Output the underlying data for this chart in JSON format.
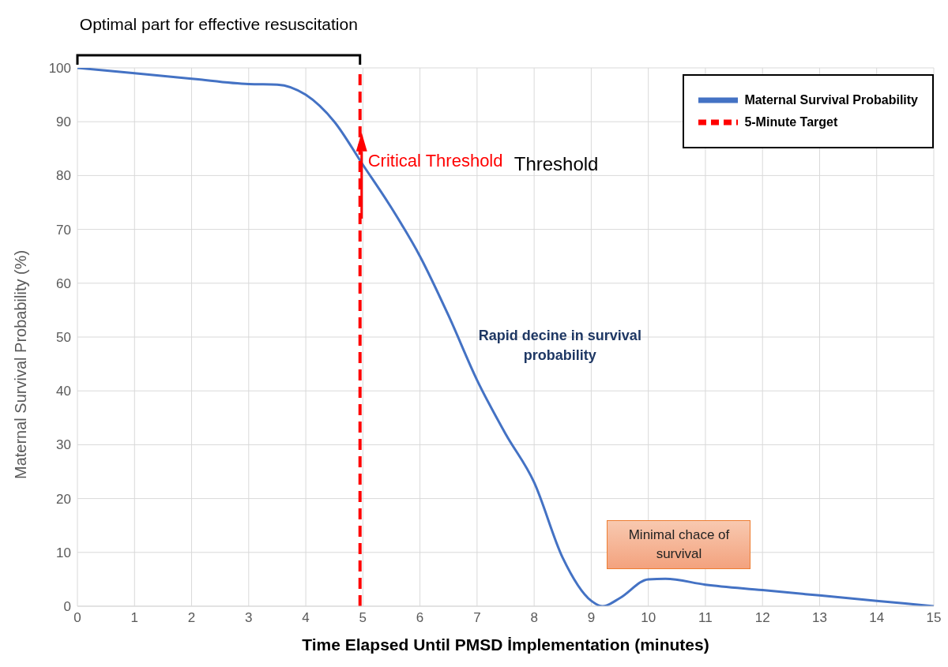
{
  "chart_data": {
    "type": "line",
    "xlabel": "Time Elapsed Until PMSD İmplementation (minutes)",
    "ylabel": "Maternal Survival Probability (%)",
    "xlim": [
      0,
      15
    ],
    "xticks": [
      0,
      1,
      2,
      3,
      4,
      5,
      6,
      7,
      8,
      9,
      10,
      11,
      12,
      13,
      14,
      15
    ],
    "ylim": [
      0,
      100
    ],
    "yticks": [
      0,
      10,
      20,
      30,
      40,
      50,
      60,
      70,
      80,
      90,
      100
    ],
    "grid": true,
    "legend": "top right",
    "marker": "none",
    "series": [
      {
        "name": "Maternal Survival Probability",
        "color": "#4472c4",
        "line_style": "solid",
        "x": [
          0,
          1,
          2,
          3,
          3.5,
          4,
          4.5,
          5,
          5.5,
          6,
          6.5,
          7,
          7.5,
          8,
          8.5,
          9,
          9.2,
          9.5,
          10,
          10.3,
          11,
          12,
          13,
          14,
          15
        ],
        "values": [
          100,
          99,
          98,
          97,
          96.9,
          95,
          90,
          82,
          74,
          65,
          54,
          42,
          32,
          23,
          9,
          1,
          0,
          1.5,
          5,
          5.1,
          4,
          3,
          2,
          1,
          0
        ]
      },
      {
        "name": "5-Minute Target",
        "color": "#ff0000",
        "line_style": "dashed",
        "x": [
          4.95,
          4.95
        ],
        "values": [
          0,
          100
        ]
      }
    ],
    "annotations": [
      "Optimal part for effective resuscitation",
      {
        "text": "Critical Threshold",
        "x": 4.95,
        "y": 82
      },
      "Threshold",
      "Rapid decine in survival probability",
      "Minimal chace of survival"
    ]
  }
}
